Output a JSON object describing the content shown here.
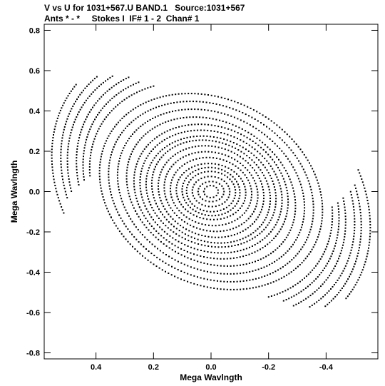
{
  "header": {
    "line1": "V vs U for 1031+567.U BAND.1   Source:1031+567",
    "line2": "Ants * - *     Stokes I  IF# 1 - 2  Chan# 1"
  },
  "chart_data": {
    "type": "scatter",
    "title": "V vs U for 1031+567.U BAND.1   Source:1031+567",
    "subtitle": "Ants * - *     Stokes I  IF# 1 - 2  Chan# 1",
    "xlabel": "Mega Wavlngth",
    "ylabel": "Mega Wavlngth",
    "xlim": [
      0.58,
      -0.58
    ],
    "ylim": [
      -0.83,
      0.83
    ],
    "x_ticks": [
      0.4,
      0.2,
      0.0,
      -0.2,
      -0.4
    ],
    "x_tick_labels": [
      "0.4",
      "0.2",
      "0.0",
      "-0.2",
      "-0.4"
    ],
    "y_ticks": [
      0.8,
      0.6,
      0.4,
      0.2,
      0.0,
      -0.2,
      -0.4,
      -0.6,
      -0.8
    ],
    "y_tick_labels": [
      "0.8",
      "0.6",
      "0.4",
      "0.2",
      "0.0",
      "-0.2",
      "-0.4",
      "-0.6",
      "-0.8"
    ],
    "grid": false,
    "point_color": "#000000",
    "tracks": [
      {
        "a": 0.52,
        "b": 0.76,
        "tilt": -0.35,
        "t0": 0.1,
        "t1": 1.05
      },
      {
        "a": 0.52,
        "b": 0.76,
        "tilt": -0.35,
        "t0": 3.24,
        "t1": 4.19
      },
      {
        "a": 0.49,
        "b": 0.72,
        "tilt": -0.35,
        "t0": 0.2,
        "t1": 1.2
      },
      {
        "a": 0.49,
        "b": 0.72,
        "tilt": -0.35,
        "t0": 3.34,
        "t1": 4.34
      },
      {
        "a": 0.47,
        "b": 0.68,
        "tilt": -0.35,
        "t0": 0.25,
        "t1": 1.3
      },
      {
        "a": 0.47,
        "b": 0.68,
        "tilt": -0.35,
        "t0": 3.39,
        "t1": 4.44
      },
      {
        "a": 0.44,
        "b": 0.64,
        "tilt": -0.35,
        "t0": 0.3,
        "t1": 1.4
      },
      {
        "a": 0.44,
        "b": 0.64,
        "tilt": -0.35,
        "t0": 3.44,
        "t1": 4.54
      },
      {
        "a": 0.42,
        "b": 0.6,
        "tilt": -0.35,
        "t0": 0.35,
        "t1": 1.45
      },
      {
        "a": 0.42,
        "b": 0.6,
        "tilt": -0.35,
        "t0": 3.49,
        "t1": 4.59
      },
      {
        "a": 0.4,
        "b": 0.56,
        "tilt": -0.35,
        "t0": 0.4,
        "t1": 1.55
      },
      {
        "a": 0.4,
        "b": 0.56,
        "tilt": -0.35,
        "t0": 3.54,
        "t1": 4.69
      },
      {
        "a": 0.37,
        "b": 0.5,
        "tilt": -0.35,
        "t0": 0.0,
        "t1": 6.28
      },
      {
        "a": 0.34,
        "b": 0.46,
        "tilt": -0.35,
        "t0": 0.0,
        "t1": 6.28
      },
      {
        "a": 0.31,
        "b": 0.42,
        "tilt": -0.35,
        "t0": 0.0,
        "t1": 6.28
      },
      {
        "a": 0.28,
        "b": 0.38,
        "tilt": -0.35,
        "t0": 0.0,
        "t1": 6.28
      },
      {
        "a": 0.26,
        "b": 0.34,
        "tilt": -0.3,
        "t0": 0.0,
        "t1": 6.28
      },
      {
        "a": 0.24,
        "b": 0.31,
        "tilt": -0.3,
        "t0": 0.0,
        "t1": 6.28
      },
      {
        "a": 0.22,
        "b": 0.28,
        "tilt": -0.3,
        "t0": 0.0,
        "t1": 6.28
      },
      {
        "a": 0.2,
        "b": 0.26,
        "tilt": -0.3,
        "t0": 0.0,
        "t1": 6.28
      },
      {
        "a": 0.18,
        "b": 0.23,
        "tilt": -0.25,
        "t0": 0.0,
        "t1": 6.28
      },
      {
        "a": 0.16,
        "b": 0.2,
        "tilt": -0.25,
        "t0": 0.0,
        "t1": 6.28
      },
      {
        "a": 0.14,
        "b": 0.17,
        "tilt": -0.2,
        "t0": 0.0,
        "t1": 6.28
      },
      {
        "a": 0.12,
        "b": 0.14,
        "tilt": -0.2,
        "t0": 0.0,
        "t1": 6.28
      },
      {
        "a": 0.1,
        "b": 0.12,
        "tilt": -0.15,
        "t0": 0.0,
        "t1": 6.28
      },
      {
        "a": 0.085,
        "b": 0.1,
        "tilt": -0.1,
        "t0": 0.0,
        "t1": 6.28
      },
      {
        "a": 0.065,
        "b": 0.075,
        "tilt": -0.1,
        "t0": 0.0,
        "t1": 6.28
      },
      {
        "a": 0.045,
        "b": 0.05,
        "tilt": 0.0,
        "t0": 0.0,
        "t1": 6.28
      },
      {
        "a": 0.025,
        "b": 0.03,
        "tilt": 0.0,
        "t0": 0.0,
        "t1": 6.28
      }
    ]
  }
}
